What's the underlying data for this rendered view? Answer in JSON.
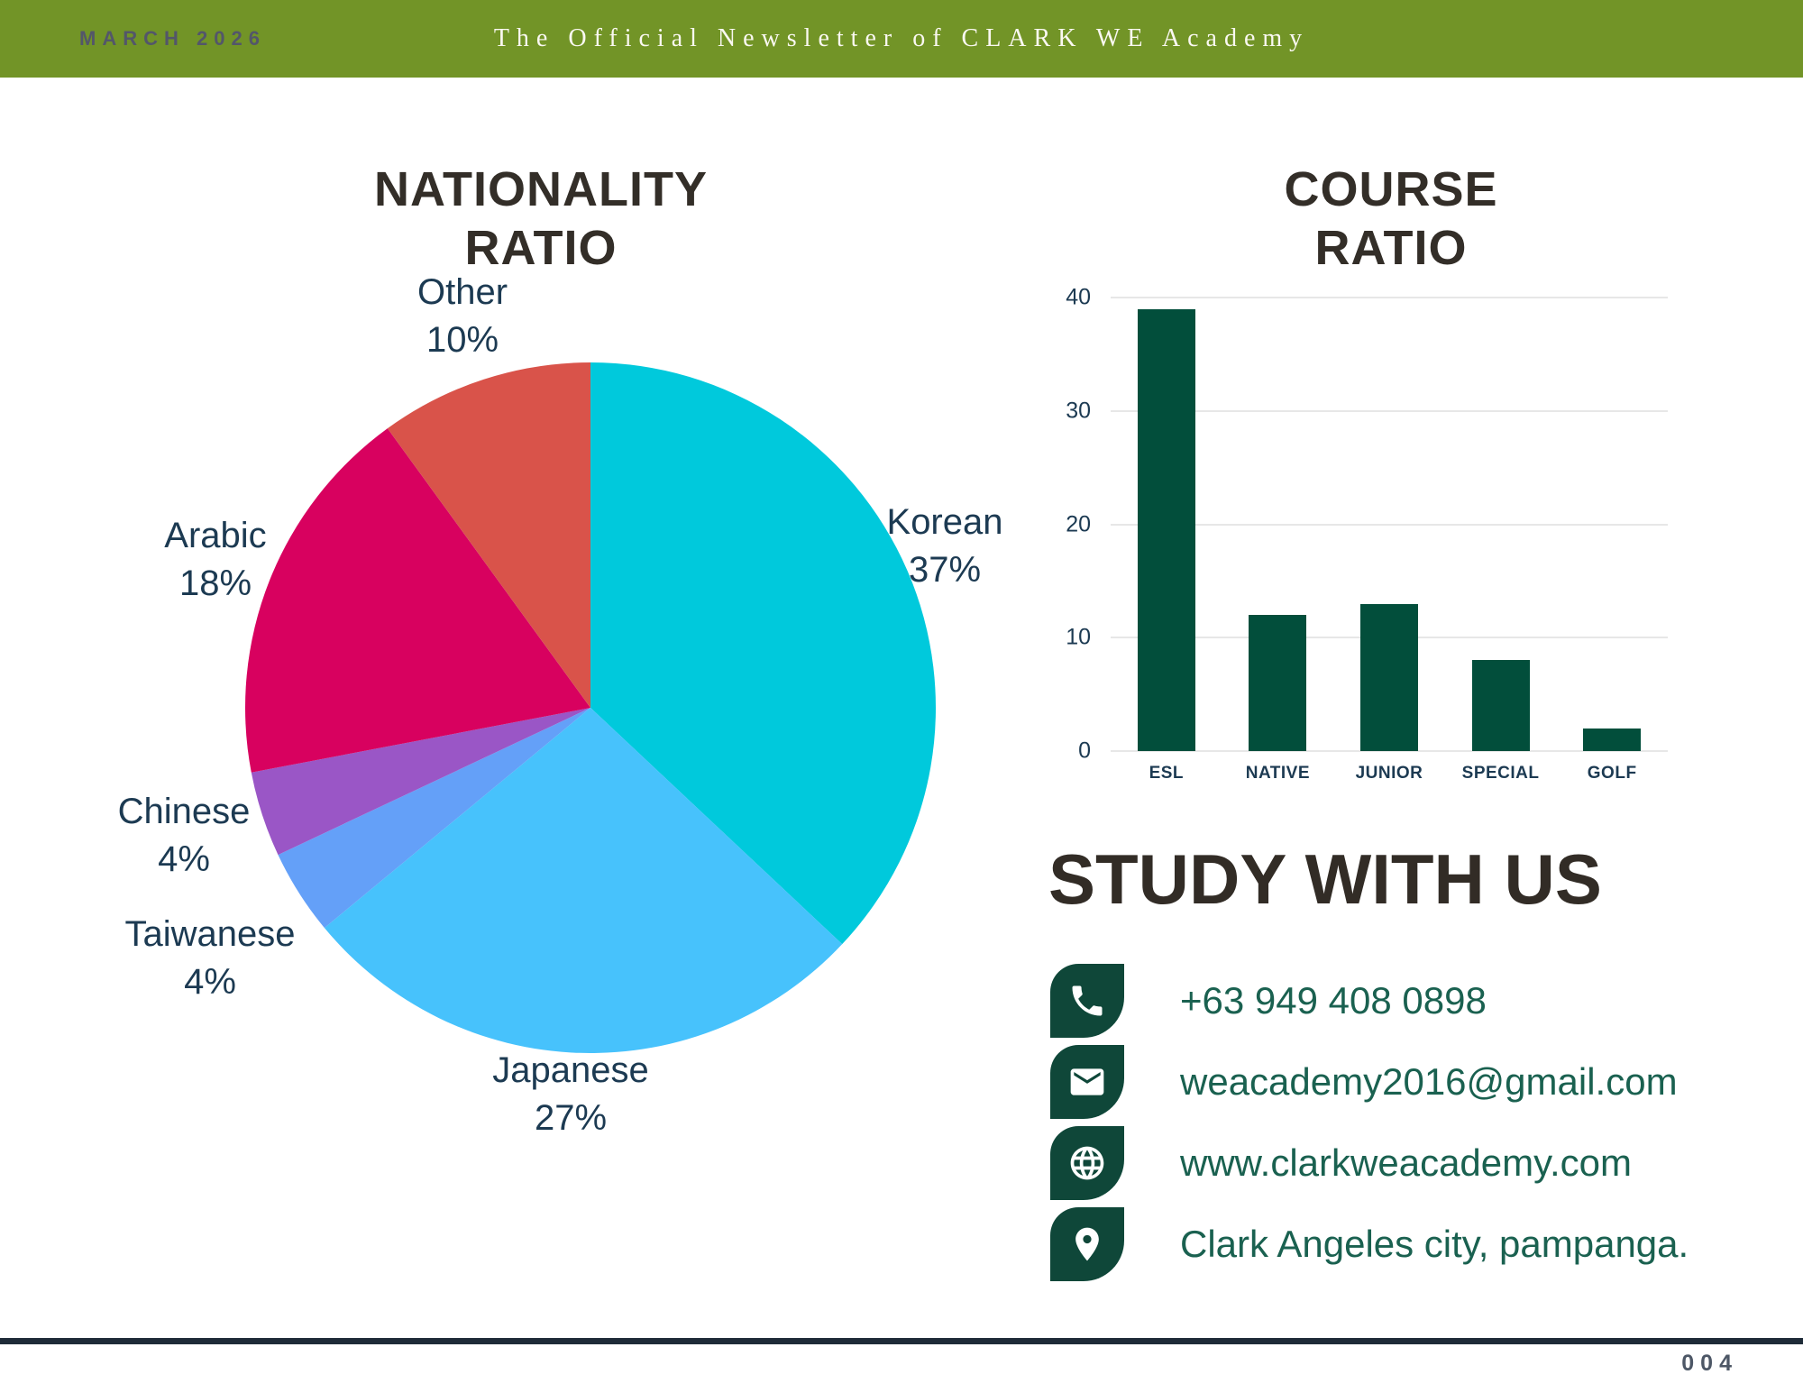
{
  "header": {
    "date": "MARCH 2026",
    "title": "The Official Newsletter of CLARK WE Academy",
    "bg_color": "#729427"
  },
  "pie_section": {
    "title_lines": [
      "NATIONALITY",
      "RATIO"
    ]
  },
  "bar_section": {
    "title_lines": [
      "COURSE",
      "RATIO"
    ]
  },
  "chart_data": [
    {
      "type": "pie",
      "title": "NATIONALITY RATIO",
      "start_angle": "12 o'clock",
      "direction": "clockwise",
      "slices": [
        {
          "label": "Korean",
          "value": 37,
          "pct": "37%",
          "color": "#00c9dc"
        },
        {
          "label": "Japanese",
          "value": 27,
          "pct": "27%",
          "color": "#47c2fc"
        },
        {
          "label": "Taiwanese",
          "value": 4,
          "pct": "4%",
          "color": "#64a0f8"
        },
        {
          "label": "Chinese",
          "value": 4,
          "pct": "4%",
          "color": "#9a56c6"
        },
        {
          "label": "Arabic",
          "value": 18,
          "pct": "18%",
          "color": "#d8015f"
        },
        {
          "label": "Other",
          "value": 10,
          "pct": "10%",
          "color": "#d9534a"
        }
      ]
    },
    {
      "type": "bar",
      "title": "COURSE RATIO",
      "categories": [
        "ESL",
        "NATIVE",
        "JUNIOR",
        "SPECIAL",
        "GOLF"
      ],
      "values": [
        39,
        12,
        13,
        8,
        2
      ],
      "bar_color": "#024e3b",
      "ylim": [
        0,
        40
      ],
      "yticks": [
        0,
        10,
        20,
        30,
        40
      ],
      "grid": true,
      "xlabel": "",
      "ylabel": ""
    }
  ],
  "study": {
    "heading": "STUDY WITH US",
    "contacts": [
      {
        "icon": "phone-icon",
        "text": "+63 949 408 0898"
      },
      {
        "icon": "mail-icon",
        "text": "weacademy2016@gmail.com"
      },
      {
        "icon": "globe-icon",
        "text": "www.clarkweacademy.com"
      },
      {
        "icon": "location-icon",
        "text": "Clark Angeles city, pampanga."
      }
    ]
  },
  "footer": {
    "page_number": "004",
    "rule_color": "#1e2b38"
  }
}
